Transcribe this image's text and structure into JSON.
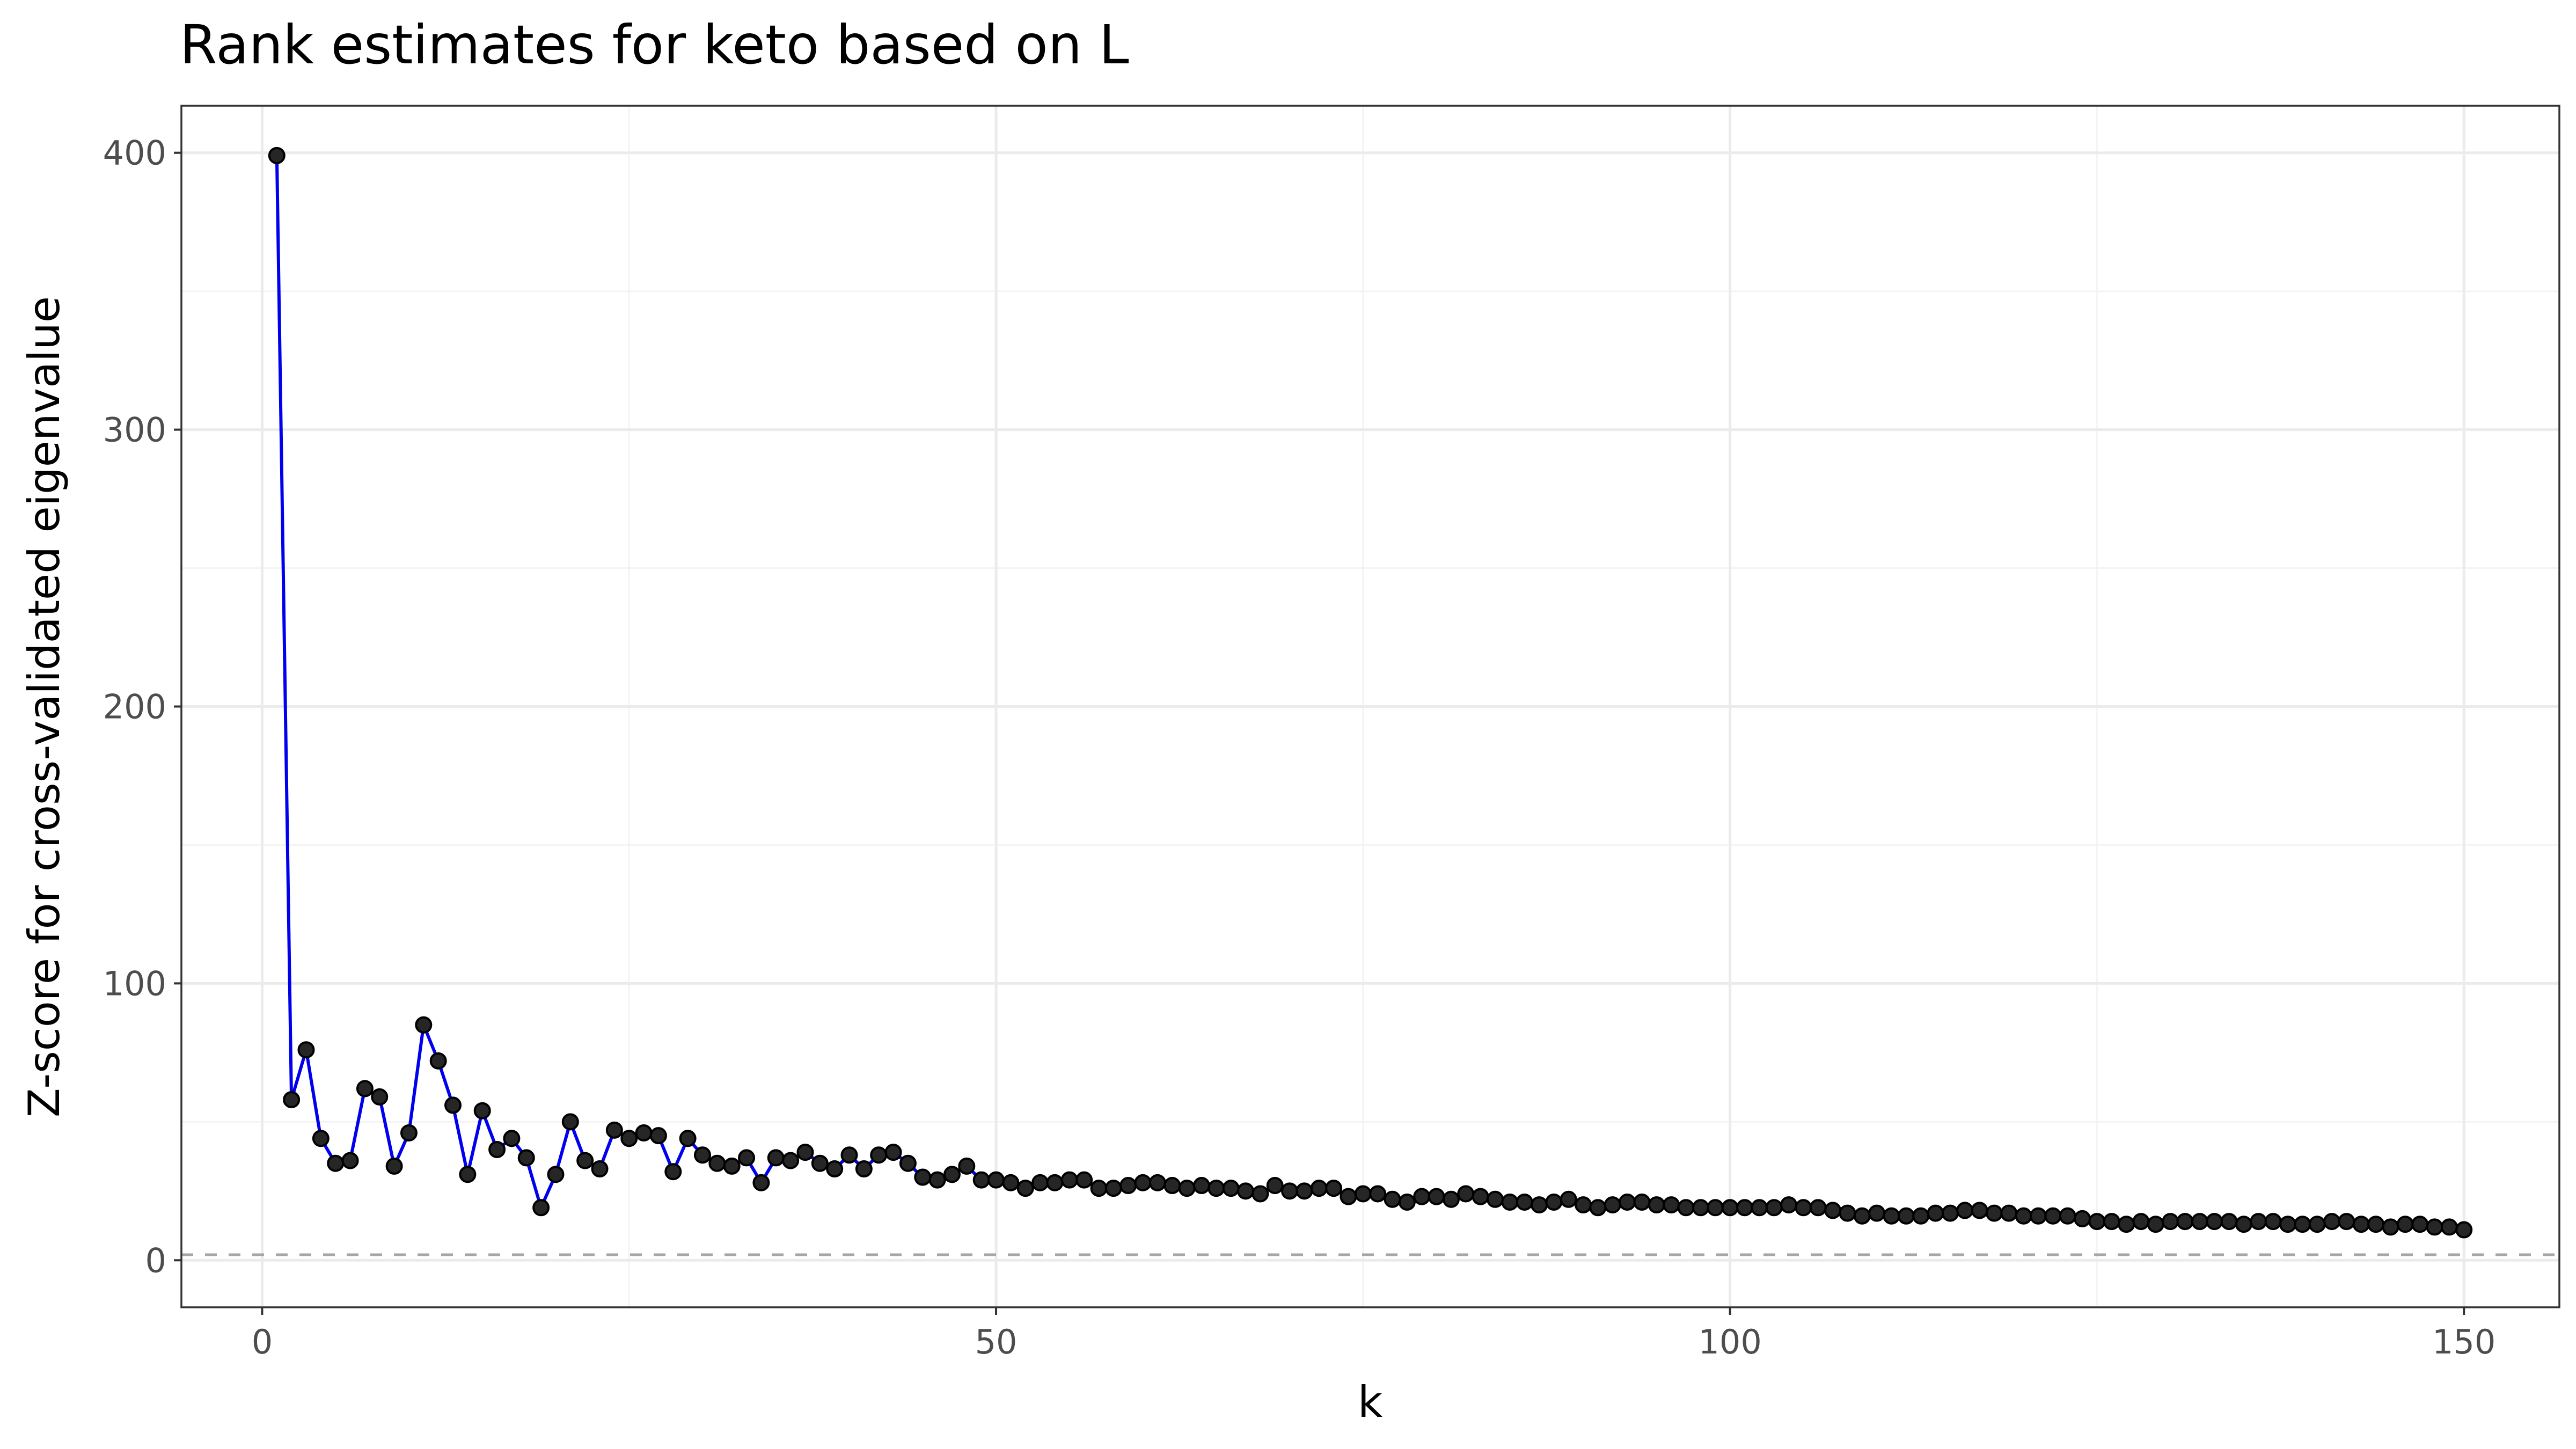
{
  "chart_data": {
    "type": "line",
    "title": "Rank estimates for keto based on L",
    "xlabel": "k",
    "ylabel": "Z-score for cross-validated eigenvalue",
    "xlim": [
      -5.5,
      156.5
    ],
    "ylim": [
      -17,
      417
    ],
    "x_ticks": [
      0,
      50,
      100,
      150
    ],
    "y_ticks": [
      0,
      100,
      200,
      300,
      400
    ],
    "x_tick_labels": [
      "0",
      "50",
      "100",
      "150"
    ],
    "y_tick_labels": [
      "0",
      "100",
      "200",
      "300",
      "400"
    ],
    "grid": true,
    "reference_line": {
      "y": 2,
      "style": "dashed",
      "color": "#a6a6a6"
    },
    "line_color": "#0000ee",
    "point_color": "#262626",
    "series": [
      {
        "x": [
          1,
          2,
          3,
          4,
          5,
          6,
          7,
          8,
          9,
          10,
          11,
          12,
          13,
          14,
          15,
          16,
          17,
          18,
          19,
          20,
          21,
          22,
          23,
          24,
          25,
          26,
          27,
          28,
          29,
          30,
          31,
          32,
          33,
          34,
          35,
          36,
          37,
          38,
          39,
          40,
          41,
          42,
          43,
          44,
          45,
          46,
          47,
          48,
          49,
          50,
          51,
          52,
          53,
          54,
          55,
          56,
          57,
          58,
          59,
          60,
          61,
          62,
          63,
          64,
          65,
          66,
          67,
          68,
          69,
          70,
          71,
          72,
          73,
          74,
          75,
          76,
          77,
          78,
          79,
          80,
          81,
          82,
          83,
          84,
          85,
          86,
          87,
          88,
          89,
          90,
          91,
          92,
          93,
          94,
          95,
          96,
          97,
          98,
          99,
          100,
          101,
          102,
          103,
          104,
          105,
          106,
          107,
          108,
          109,
          110,
          111,
          112,
          113,
          114,
          115,
          116,
          117,
          118,
          119,
          120,
          121,
          122,
          123,
          124,
          125,
          126,
          127,
          128,
          129,
          130,
          131,
          132,
          133,
          134,
          135,
          136,
          137,
          138,
          139,
          140,
          141,
          142,
          143,
          144,
          145,
          146,
          147,
          148,
          149,
          150
        ],
        "y": [
          399,
          58,
          76,
          44,
          35,
          36,
          62,
          59,
          34,
          46,
          85,
          72,
          56,
          31,
          54,
          40,
          44,
          37,
          19,
          31,
          50,
          36,
          33,
          47,
          44,
          46,
          45,
          32,
          44,
          38,
          35,
          34,
          37,
          28,
          37,
          36,
          39,
          35,
          33,
          38,
          33,
          38,
          39,
          35,
          30,
          29,
          31,
          34,
          29,
          29,
          28,
          26,
          28,
          28,
          29,
          29,
          26,
          26,
          27,
          28,
          28,
          27,
          26,
          27,
          26,
          26,
          25,
          24,
          27,
          25,
          25,
          26,
          26,
          23,
          24,
          24,
          22,
          21,
          23,
          23,
          22,
          24,
          23,
          22,
          21,
          21,
          20,
          21,
          22,
          20,
          19,
          20,
          21,
          21,
          20,
          20,
          19,
          19,
          19,
          19,
          19,
          19,
          19,
          20,
          19,
          19,
          18,
          17,
          16,
          17,
          16,
          16,
          16,
          17,
          17,
          18,
          18,
          17,
          17,
          16,
          16,
          16,
          16,
          15,
          14,
          14,
          13,
          14,
          13,
          14,
          14,
          14,
          14,
          14,
          13,
          14,
          14,
          13,
          13,
          13,
          14,
          14,
          13,
          13,
          12,
          13,
          13,
          12,
          12,
          11
        ]
      }
    ]
  }
}
